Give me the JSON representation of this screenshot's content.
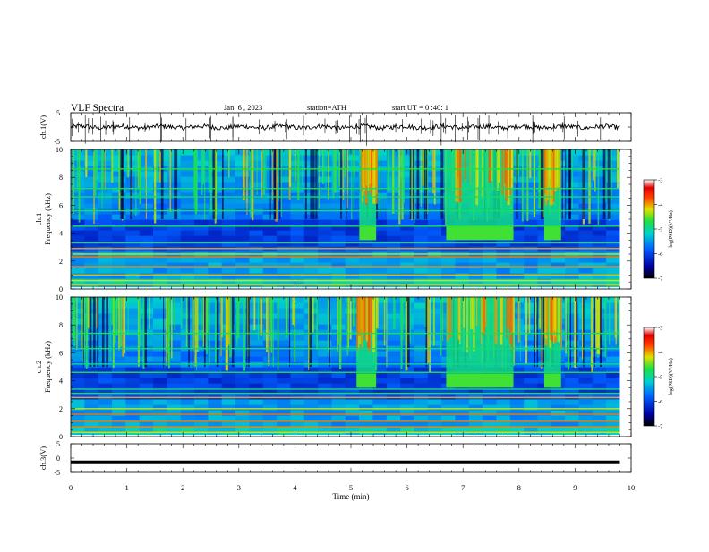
{
  "header": {
    "title": "VLF Spectra",
    "date": "Jan. 6 , 2023",
    "station": "station=ATH",
    "start": "start UT = 0 :40: 1"
  },
  "colors": {
    "spectrogram_low": "#000080",
    "spectrogram_mid": "#00cc66",
    "spectrogram_high": "#ff2020",
    "trace": "#000000"
  },
  "chart_data": [
    {
      "type": "line",
      "name": "ch1-waveform",
      "ylabel": "ch.1(V)",
      "xlim": [
        0,
        10
      ],
      "ylim": [
        -5,
        5
      ],
      "yticks": [
        "5",
        "-5"
      ],
      "data_end_min": 9.8,
      "baseline_v": 0.0
    },
    {
      "type": "heatmap",
      "name": "ch1-spectrogram",
      "ylabel": "ch.1\nFrequency (kHz)",
      "ylabel_channel": "ch.1",
      "ylabel_freq": "Frequency (kHz)",
      "xlim": [
        0,
        10
      ],
      "ylim": [
        0,
        10
      ],
      "yticks": [
        "0",
        "2",
        "4",
        "6",
        "8",
        "10"
      ],
      "data_end_min": 9.8,
      "colorbar": {
        "label": "log(PSD)(V²/Hz)",
        "ticks": [
          "-3",
          "-4",
          "-5",
          "-6",
          "-7"
        ],
        "range": [
          -7,
          -3
        ]
      },
      "bursts_min": [
        [
          5.15,
          5.45
        ],
        [
          6.7,
          7.9
        ],
        [
          8.45,
          8.75
        ]
      ],
      "burst_band_khz": [
        3.5,
        4.5
      ],
      "lines_khz": [
        0.3,
        0.6,
        1.0,
        1.6,
        2.3,
        2.5,
        2.9,
        3.3,
        4.5,
        5.6,
        6.6,
        7.2,
        8.6
      ]
    },
    {
      "type": "heatmap",
      "name": "ch2-spectrogram",
      "ylabel": "ch.2\nFrequency (kHz)",
      "ylabel_channel": "ch.2",
      "ylabel_freq": "Frequency (kHz)",
      "xlim": [
        0,
        10
      ],
      "ylim": [
        0,
        10
      ],
      "yticks": [
        "0",
        "2",
        "4",
        "6",
        "8",
        "10"
      ],
      "data_end_min": 9.8,
      "colorbar": {
        "label": "log(PSD)(V²/Hz)",
        "ticks": [
          "-3",
          "-4",
          "-5",
          "-6",
          "-7"
        ],
        "range": [
          -7,
          -3
        ]
      },
      "bursts_min": [
        [
          5.1,
          5.45
        ],
        [
          6.7,
          7.9
        ],
        [
          8.45,
          8.75
        ]
      ],
      "burst_band_khz": [
        3.5,
        4.5
      ],
      "lines_khz": [
        0.3,
        0.7,
        1.1,
        1.6,
        2.0,
        2.8,
        3.1,
        3.4,
        4.6,
        5.2,
        6.3,
        7.4
      ]
    },
    {
      "type": "line",
      "name": "ch3-waveform",
      "ylabel": "ch.3(V)",
      "xlabel": "Time (min)",
      "xlim": [
        0,
        10
      ],
      "ylim": [
        -5,
        5
      ],
      "yticks": [
        "5",
        "0",
        "-5"
      ],
      "xticks": [
        "0",
        "1",
        "2",
        "3",
        "4",
        "5",
        "6",
        "7",
        "8",
        "9",
        "10"
      ],
      "data_end_min": 9.8,
      "baseline_v": -1.5
    }
  ]
}
